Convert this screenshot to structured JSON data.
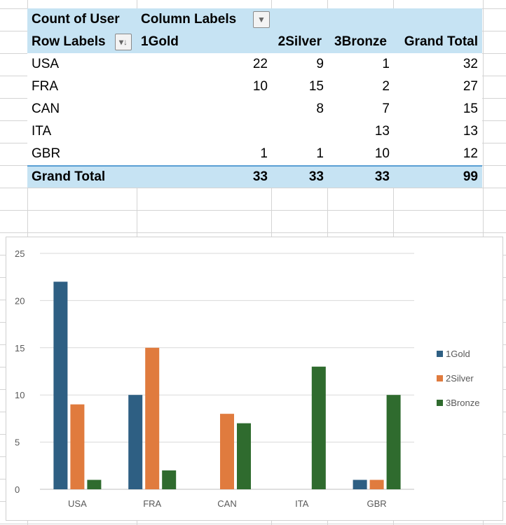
{
  "pivot": {
    "value_field": "Count of User",
    "column_labels": "Column Labels",
    "row_labels": "Row Labels",
    "columns": [
      "1Gold",
      "2Silver",
      "3Bronze",
      "Grand Total"
    ],
    "rows": [
      {
        "label": "USA",
        "values": [
          "22",
          "9",
          "1",
          "32"
        ]
      },
      {
        "label": "FRA",
        "values": [
          "10",
          "15",
          "2",
          "27"
        ]
      },
      {
        "label": "CAN",
        "values": [
          "",
          "8",
          "7",
          "15"
        ]
      },
      {
        "label": "ITA",
        "values": [
          "",
          "",
          "13",
          "13"
        ]
      },
      {
        "label": "GBR",
        "values": [
          "1",
          "1",
          "10",
          "12"
        ]
      }
    ],
    "grand_total": {
      "label": "Grand Total",
      "values": [
        "33",
        "33",
        "33",
        "99"
      ]
    }
  },
  "chart_data": {
    "type": "bar",
    "categories": [
      "USA",
      "FRA",
      "CAN",
      "ITA",
      "GBR"
    ],
    "series": [
      {
        "name": "1Gold",
        "color": "#2e5f83",
        "values": [
          22,
          10,
          0,
          0,
          1
        ]
      },
      {
        "name": "2Silver",
        "color": "#e07b3e",
        "values": [
          9,
          15,
          8,
          0,
          1
        ]
      },
      {
        "name": "3Bronze",
        "color": "#2f6b2e",
        "values": [
          1,
          2,
          7,
          13,
          10
        ]
      }
    ],
    "ylim": [
      0,
      25
    ],
    "yticks": [
      0,
      5,
      10,
      15,
      20,
      25
    ],
    "grid": true,
    "legend": "right"
  }
}
